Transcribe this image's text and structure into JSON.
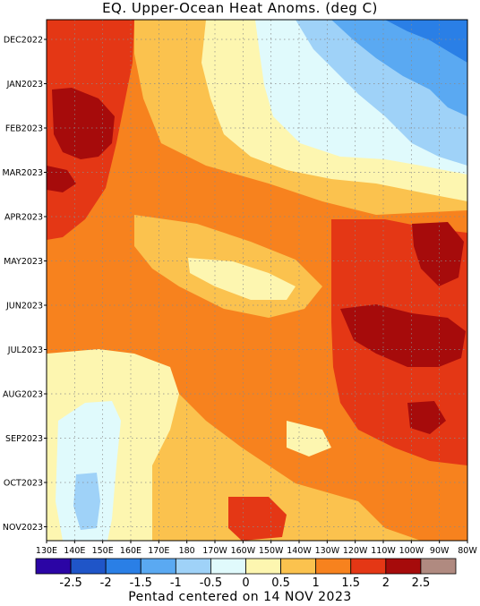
{
  "chart_data": {
    "type": "heatmap",
    "title": "EQ. Upper-Ocean Heat Anoms. (deg C)",
    "footer": "Pentad centered on 14 NOV 2023",
    "x_ticks": [
      "130E",
      "140E",
      "150E",
      "160E",
      "170E",
      "180",
      "170W",
      "160W",
      "150W",
      "140W",
      "130W",
      "120W",
      "110W",
      "100W",
      "90W",
      "80W"
    ],
    "y_ticks": [
      "DEC2022",
      "JAN2023",
      "FEB2023",
      "MAR2023",
      "APR2023",
      "MAY2023",
      "JUN2023",
      "JUL2023",
      "AUG2023",
      "SEP2023",
      "OCT2023",
      "NOV2023"
    ],
    "colorbar": {
      "labels": [
        "-2.5",
        "-2",
        "-1.5",
        "-1",
        "-0.5",
        "0",
        "0.5",
        "1",
        "1.5",
        "2",
        "2.5"
      ],
      "colors": [
        "#2b05a5",
        "#1f55c8",
        "#2a7fe6",
        "#5aa9f2",
        "#9fd2f8",
        "#e0fafc",
        "#fdf6b0",
        "#fbc24e",
        "#f7821e",
        "#e43715",
        "#a60b0b",
        "#b08a80"
      ]
    },
    "grid": true
  }
}
